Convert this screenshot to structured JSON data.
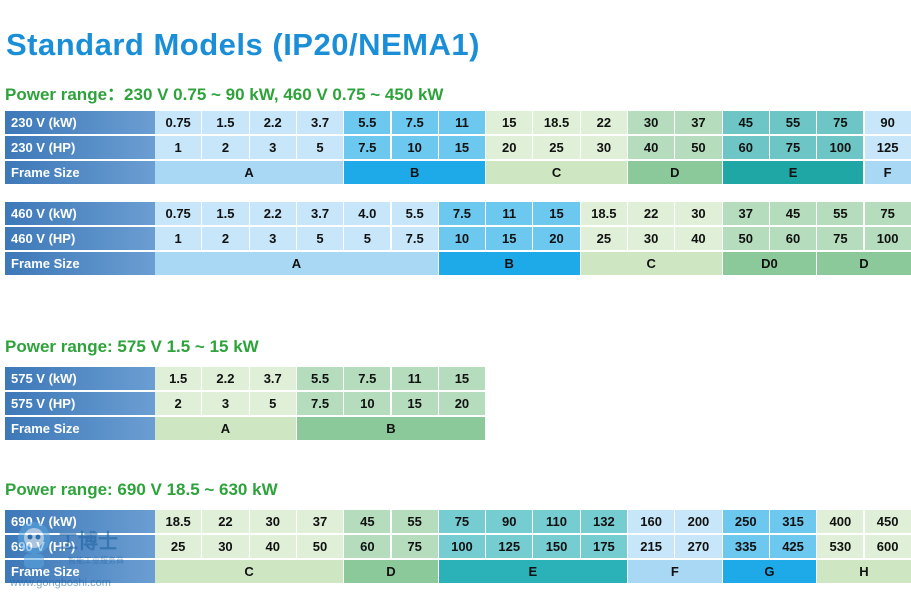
{
  "title": "Standard Models (IP20/NEMA1)",
  "colors": {
    "title": "#1a8fd8",
    "subtitle": "#2ea33b",
    "header": "#3d78b8",
    "light_blue": "#a9d8f5",
    "blue": "#1eaae8",
    "light_green": "#cfe6c3",
    "green": "#8cc99a",
    "teal": "#2bb1b8",
    "dark_teal": "#1fa7a5"
  },
  "sections": [
    {
      "subtitle": "Power range：230 V 0.75 ~ 90 kW, 460 V 0.75 ~ 450 kW",
      "tables": [
        {
          "rows": [
            {
              "label": "230 V (kW)",
              "values": [
                "0.75",
                "1.5",
                "2.2",
                "3.7",
                "5.5",
                "7.5",
                "11",
                "15",
                "18.5",
                "22",
                "30",
                "37",
                "45",
                "55",
                "75",
                "90"
              ]
            },
            {
              "label": "230 V (HP)",
              "values": [
                "1",
                "2",
                "3",
                "5",
                "7.5",
                "10",
                "15",
                "20",
                "25",
                "30",
                "40",
                "50",
                "60",
                "75",
                "100",
                "125"
              ]
            }
          ],
          "frame_label": "Frame Size",
          "frames": [
            {
              "name": "A",
              "span": 4,
              "color": "#a9d8f5"
            },
            {
              "name": "B",
              "span": 3,
              "color": "#1eaae8"
            },
            {
              "name": "C",
              "span": 3,
              "color": "#cfe6c3"
            },
            {
              "name": "D",
              "span": 2,
              "color": "#8cc99a"
            },
            {
              "name": "E",
              "span": 3,
              "color": "#1fa7a5"
            },
            {
              "name": "F",
              "span": 1,
              "color": "#a9d8f5"
            }
          ]
        },
        {
          "rows": [
            {
              "label": "460 V (kW)",
              "values": [
                "0.75",
                "1.5",
                "2.2",
                "3.7",
                "4.0",
                "5.5",
                "7.5",
                "11",
                "15",
                "18.5",
                "22",
                "30",
                "37",
                "45",
                "55",
                "75"
              ]
            },
            {
              "label": "460 V (HP)",
              "values": [
                "1",
                "2",
                "3",
                "5",
                "5",
                "7.5",
                "10",
                "15",
                "20",
                "25",
                "30",
                "40",
                "50",
                "60",
                "75",
                "100"
              ]
            }
          ],
          "frame_label": "Frame Size",
          "frames": [
            {
              "name": "A",
              "span": 6,
              "color": "#a9d8f5"
            },
            {
              "name": "B",
              "span": 3,
              "color": "#1eaae8"
            },
            {
              "name": "C",
              "span": 3,
              "color": "#cfe6c3"
            },
            {
              "name": "D0",
              "span": 2,
              "color": "#8cc99a"
            },
            {
              "name": "D",
              "span": 2,
              "color": "#8cc99a"
            }
          ]
        }
      ]
    },
    {
      "subtitle": "Power range: 575 V 1.5 ~ 15 kW",
      "tables": [
        {
          "rows": [
            {
              "label": "575 V (kW)",
              "values": [
                "1.5",
                "2.2",
                "3.7",
                "5.5",
                "7.5",
                "11",
                "15"
              ]
            },
            {
              "label": "575 V (HP)",
              "values": [
                "2",
                "3",
                "5",
                "7.5",
                "10",
                "15",
                "20"
              ]
            }
          ],
          "frame_label": "Frame Size",
          "frames": [
            {
              "name": "A",
              "span": 3,
              "color": "#cfe6c3"
            },
            {
              "name": "B",
              "span": 4,
              "color": "#8cc99a"
            }
          ]
        }
      ]
    },
    {
      "subtitle": "Power range: 690 V 18.5 ~ 630 kW",
      "tables": [
        {
          "rows": [
            {
              "label": "690 V (kW)",
              "values": [
                "18.5",
                "22",
                "30",
                "37",
                "45",
                "55",
                "75",
                "90",
                "110",
                "132",
                "160",
                "200",
                "250",
                "315",
                "400",
                "450"
              ]
            },
            {
              "label": "690 V (HP)",
              "values": [
                "25",
                "30",
                "40",
                "50",
                "60",
                "75",
                "100",
                "125",
                "150",
                "175",
                "215",
                "270",
                "335",
                "425",
                "530",
                "600"
              ]
            }
          ],
          "frame_label": "Frame Size",
          "frames": [
            {
              "name": "C",
              "span": 4,
              "color": "#cfe6c3"
            },
            {
              "name": "D",
              "span": 2,
              "color": "#8cc99a"
            },
            {
              "name": "E",
              "span": 4,
              "color": "#2bb1b8"
            },
            {
              "name": "F",
              "span": 2,
              "color": "#a9d8f5"
            },
            {
              "name": "G",
              "span": 2,
              "color": "#1eaae8"
            },
            {
              "name": "H",
              "span": 2,
              "color": "#cfe6c3"
            }
          ]
        }
      ]
    }
  ],
  "watermark": {
    "brand": "工博士",
    "tagline": "智能工业服务商",
    "url": "www.gongboshi.com",
    "icon": "robot-mascot-icon"
  }
}
